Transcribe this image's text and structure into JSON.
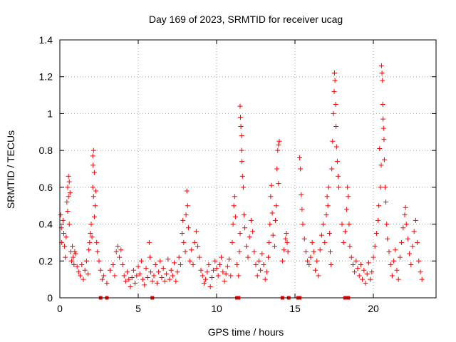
{
  "chart_data": {
    "type": "scatter",
    "title": "Day 169 of 2023, SRMTID for receiver ucag",
    "xlabel": "GPS time / hours",
    "ylabel": "SRMTID / TECUs",
    "xlim": [
      0,
      24
    ],
    "ylim": [
      0,
      1.4
    ],
    "xticks": [
      0,
      5,
      10,
      15,
      20
    ],
    "xtick_labels": [
      "0",
      "5",
      "10",
      "15",
      "20"
    ],
    "yticks": [
      0,
      0.2,
      0.4,
      0.6,
      0.8,
      1,
      1.2,
      1.4
    ],
    "ytick_labels": [
      "0",
      "0.2",
      "0.4",
      "0.6",
      "0.8",
      "1",
      "1.2",
      "1.4"
    ],
    "grid": true,
    "marker": "+",
    "color": "#ff0000",
    "series": [
      {
        "name": "SRMTID",
        "points": [
          [
            0.05,
            0.45
          ],
          [
            0.1,
            0.38
          ],
          [
            0.12,
            0.3
          ],
          [
            0.2,
            0.42
          ],
          [
            0.25,
            0.35
          ],
          [
            0.3,
            0.28
          ],
          [
            0.35,
            0.22
          ],
          [
            0.4,
            0.33
          ],
          [
            0.45,
            0.52
          ],
          [
            0.5,
            0.6
          ],
          [
            0.5,
            0.47
          ],
          [
            0.55,
            0.66
          ],
          [
            0.55,
            0.55
          ],
          [
            0.6,
            0.63
          ],
          [
            0.6,
            0.4
          ],
          [
            0.65,
            0.57
          ],
          [
            0.7,
            0.25
          ],
          [
            0.75,
            0.2
          ],
          [
            0.8,
            0.28
          ],
          [
            0.85,
            0.22
          ],
          [
            0.9,
            0.18
          ],
          [
            0.95,
            0.25
          ],
          [
            1.0,
            0.24
          ],
          [
            1.1,
            0.17
          ],
          [
            1.2,
            0.14
          ],
          [
            1.3,
            0.12
          ],
          [
            1.4,
            0.18
          ],
          [
            1.5,
            0.1
          ],
          [
            1.6,
            0.15
          ],
          [
            1.7,
            0.2
          ],
          [
            1.8,
            0.13
          ],
          [
            1.85,
            0.26
          ],
          [
            1.9,
            0.3
          ],
          [
            1.95,
            0.35
          ],
          [
            2.0,
            0.4
          ],
          [
            2.05,
            0.33
          ],
          [
            2.1,
            0.77
          ],
          [
            2.1,
            0.6
          ],
          [
            2.12,
            0.72
          ],
          [
            2.15,
            0.8
          ],
          [
            2.15,
            0.55
          ],
          [
            2.2,
            0.68
          ],
          [
            2.2,
            0.44
          ],
          [
            2.25,
            0.5
          ],
          [
            2.3,
            0.58
          ],
          [
            2.35,
            0.3
          ],
          [
            2.4,
            0.25
          ],
          [
            2.5,
            0.2
          ],
          [
            2.6,
            0.15
          ],
          [
            2.7,
            0.1
          ],
          [
            2.8,
            0.12
          ],
          [
            3.0,
            0.08
          ],
          [
            3.2,
            0.15
          ],
          [
            3.4,
            0.18
          ],
          [
            3.5,
            0.12
          ],
          [
            3.6,
            0.25
          ],
          [
            3.7,
            0.28
          ],
          [
            3.8,
            0.22
          ],
          [
            3.9,
            0.26
          ],
          [
            4.0,
            0.18
          ],
          [
            4.1,
            0.12
          ],
          [
            4.2,
            0.09
          ],
          [
            4.3,
            0.14
          ],
          [
            4.4,
            0.1
          ],
          [
            4.5,
            0.06
          ],
          [
            4.6,
            0.11
          ],
          [
            4.7,
            0.15
          ],
          [
            4.8,
            0.08
          ],
          [
            4.9,
            0.12
          ],
          [
            5.0,
            0.17
          ],
          [
            5.1,
            0.13
          ],
          [
            5.2,
            0.2
          ],
          [
            5.3,
            0.1
          ],
          [
            5.4,
            0.07
          ],
          [
            5.5,
            0.16
          ],
          [
            5.6,
            0.11
          ],
          [
            5.7,
            0.3
          ],
          [
            5.75,
            0.22
          ],
          [
            5.8,
            0.14
          ],
          [
            5.9,
            0.09
          ],
          [
            6.0,
            0.12
          ],
          [
            6.1,
            0.18
          ],
          [
            6.2,
            0.08
          ],
          [
            6.3,
            0.14
          ],
          [
            6.4,
            0.2
          ],
          [
            6.5,
            0.11
          ],
          [
            6.6,
            0.16
          ],
          [
            6.7,
            0.09
          ],
          [
            6.8,
            0.13
          ],
          [
            6.9,
            0.21
          ],
          [
            7.0,
            0.1
          ],
          [
            7.1,
            0.15
          ],
          [
            7.2,
            0.12
          ],
          [
            7.3,
            0.19
          ],
          [
            7.4,
            0.09
          ],
          [
            7.5,
            0.14
          ],
          [
            7.6,
            0.22
          ],
          [
            7.7,
            0.18
          ],
          [
            7.8,
            0.35
          ],
          [
            7.85,
            0.42
          ],
          [
            7.9,
            0.3
          ],
          [
            8.0,
            0.25
          ],
          [
            8.05,
            0.45
          ],
          [
            8.1,
            0.58
          ],
          [
            8.15,
            0.5
          ],
          [
            8.2,
            0.38
          ],
          [
            8.3,
            0.2
          ],
          [
            8.4,
            0.26
          ],
          [
            8.5,
            0.18
          ],
          [
            8.6,
            0.3
          ],
          [
            8.7,
            0.36
          ],
          [
            8.8,
            0.28
          ],
          [
            8.9,
            0.22
          ],
          [
            9.0,
            0.15
          ],
          [
            9.1,
            0.12
          ],
          [
            9.2,
            0.08
          ],
          [
            9.3,
            0.1
          ],
          [
            9.4,
            0.14
          ],
          [
            9.5,
            0.18
          ],
          [
            9.6,
            0.06
          ],
          [
            9.7,
            0.11
          ],
          [
            9.8,
            0.15
          ],
          [
            9.9,
            0.2
          ],
          [
            10.0,
            0.16
          ],
          [
            10.1,
            0.12
          ],
          [
            10.2,
            0.18
          ],
          [
            10.3,
            0.22
          ],
          [
            10.4,
            0.14
          ],
          [
            10.5,
            0.09
          ],
          [
            10.6,
            0.13
          ],
          [
            10.7,
            0.17
          ],
          [
            10.8,
            0.21
          ],
          [
            10.9,
            0.12
          ],
          [
            11.0,
            0.3
          ],
          [
            11.05,
            0.4
          ],
          [
            11.1,
            0.5
          ],
          [
            11.15,
            0.55
          ],
          [
            11.2,
            0.44
          ],
          [
            11.3,
            0.18
          ],
          [
            11.4,
            0.12
          ],
          [
            11.45,
            0.25
          ],
          [
            11.5,
            0.35
          ],
          [
            11.5,
            1.04
          ],
          [
            11.52,
            0.98
          ],
          [
            11.55,
            0.93
          ],
          [
            11.6,
            0.88
          ],
          [
            11.6,
            0.8
          ],
          [
            11.62,
            0.74
          ],
          [
            11.65,
            0.66
          ],
          [
            11.7,
            0.6
          ],
          [
            11.75,
            0.45
          ],
          [
            11.8,
            0.38
          ],
          [
            11.9,
            0.28
          ],
          [
            12.0,
            0.22
          ],
          [
            12.1,
            0.33
          ],
          [
            12.2,
            0.42
          ],
          [
            12.3,
            0.36
          ],
          [
            12.4,
            0.25
          ],
          [
            12.5,
            0.18
          ],
          [
            12.6,
            0.12
          ],
          [
            12.7,
            0.2
          ],
          [
            12.8,
            0.15
          ],
          [
            12.9,
            0.24
          ],
          [
            13.0,
            0.18
          ],
          [
            13.1,
            0.1
          ],
          [
            13.2,
            0.14
          ],
          [
            13.3,
            0.22
          ],
          [
            13.35,
            0.3
          ],
          [
            13.4,
            0.4
          ],
          [
            13.45,
            0.55
          ],
          [
            13.5,
            0.61
          ],
          [
            13.55,
            0.46
          ],
          [
            13.6,
            0.34
          ],
          [
            13.7,
            0.28
          ],
          [
            13.75,
            0.42
          ],
          [
            13.8,
            0.5
          ],
          [
            13.85,
            0.7
          ],
          [
            13.9,
            0.8
          ],
          [
            13.95,
            0.83
          ],
          [
            14.0,
            0.85
          ],
          [
            13.95,
            0.62
          ],
          [
            14.2,
            0.2
          ],
          [
            14.3,
            0.26
          ],
          [
            14.4,
            0.32
          ],
          [
            14.45,
            0.35
          ],
          [
            14.5,
            0.3
          ],
          [
            14.55,
            0.25
          ],
          [
            15.3,
            0.76
          ],
          [
            15.35,
            0.7
          ],
          [
            15.4,
            0.56
          ],
          [
            15.45,
            0.48
          ],
          [
            15.5,
            0.4
          ],
          [
            15.6,
            0.32
          ],
          [
            15.7,
            0.25
          ],
          [
            15.8,
            0.2
          ],
          [
            15.9,
            0.18
          ],
          [
            16.0,
            0.22
          ],
          [
            16.1,
            0.3
          ],
          [
            16.2,
            0.25
          ],
          [
            16.3,
            0.15
          ],
          [
            16.4,
            0.2
          ],
          [
            16.5,
            0.12
          ],
          [
            16.6,
            0.26
          ],
          [
            16.7,
            0.34
          ],
          [
            16.8,
            0.4
          ],
          [
            16.9,
            0.3
          ],
          [
            17.0,
            0.45
          ],
          [
            17.05,
            0.55
          ],
          [
            17.1,
            0.5
          ],
          [
            17.15,
            0.6
          ],
          [
            17.2,
            0.35
          ],
          [
            17.25,
            0.25
          ],
          [
            17.3,
            0.18
          ],
          [
            17.35,
            0.7
          ],
          [
            17.4,
            0.85
          ],
          [
            17.45,
            1.0
          ],
          [
            17.5,
            1.12
          ],
          [
            17.52,
            1.22
          ],
          [
            17.55,
            1.18
          ],
          [
            17.6,
            1.05
          ],
          [
            17.62,
            0.93
          ],
          [
            17.65,
            0.82
          ],
          [
            17.7,
            0.74
          ],
          [
            17.75,
            0.66
          ],
          [
            17.8,
            0.6
          ],
          [
            18.0,
            0.4
          ],
          [
            18.1,
            0.3
          ],
          [
            18.2,
            0.36
          ],
          [
            18.3,
            0.48
          ],
          [
            18.35,
            0.6
          ],
          [
            18.4,
            0.55
          ],
          [
            18.45,
            0.4
          ],
          [
            18.5,
            0.28
          ],
          [
            18.6,
            0.22
          ],
          [
            18.7,
            0.18
          ],
          [
            18.8,
            0.14
          ],
          [
            18.9,
            0.2
          ],
          [
            19.0,
            0.16
          ],
          [
            19.1,
            0.12
          ],
          [
            19.2,
            0.18
          ],
          [
            19.3,
            0.1
          ],
          [
            19.4,
            0.15
          ],
          [
            19.5,
            0.08
          ],
          [
            19.6,
            0.13
          ],
          [
            19.7,
            0.19
          ],
          [
            19.8,
            0.1
          ],
          [
            19.9,
            0.14
          ],
          [
            20.0,
            0.22
          ],
          [
            20.1,
            0.28
          ],
          [
            20.2,
            0.35
          ],
          [
            20.3,
            0.42
          ],
          [
            20.35,
            0.5
          ],
          [
            20.4,
            0.81
          ],
          [
            20.45,
            0.6
          ],
          [
            20.5,
            0.72
          ],
          [
            20.52,
            1.26
          ],
          [
            20.55,
            1.22
          ],
          [
            20.58,
            1.18
          ],
          [
            20.6,
            1.05
          ],
          [
            20.62,
            0.97
          ],
          [
            20.65,
            0.92
          ],
          [
            20.68,
            0.86
          ],
          [
            20.7,
            0.75
          ],
          [
            20.75,
            0.6
          ],
          [
            20.8,
            0.52
          ],
          [
            20.85,
            0.4
          ],
          [
            20.9,
            0.32
          ],
          [
            21.0,
            0.25
          ],
          [
            21.1,
            0.18
          ],
          [
            21.2,
            0.12
          ],
          [
            21.3,
            0.2
          ],
          [
            21.4,
            0.26
          ],
          [
            21.5,
            0.15
          ],
          [
            21.6,
            0.1
          ],
          [
            21.7,
            0.22
          ],
          [
            21.8,
            0.3
          ],
          [
            21.9,
            0.38
          ],
          [
            22.0,
            0.45
          ],
          [
            22.05,
            0.49
          ],
          [
            22.1,
            0.4
          ],
          [
            22.2,
            0.32
          ],
          [
            22.3,
            0.24
          ],
          [
            22.4,
            0.18
          ],
          [
            22.5,
            0.28
          ],
          [
            22.6,
            0.36
          ],
          [
            22.7,
            0.42
          ],
          [
            22.8,
            0.3
          ],
          [
            22.9,
            0.2
          ],
          [
            23.0,
            0.14
          ],
          [
            23.1,
            0.1
          ]
        ]
      },
      {
        "name": "zero-markers",
        "x": [
          2.6,
          3.0,
          5.9,
          11.3,
          11.4,
          14.2,
          14.6,
          15.2,
          15.3,
          18.2,
          18.3,
          18.4
        ]
      }
    ]
  }
}
